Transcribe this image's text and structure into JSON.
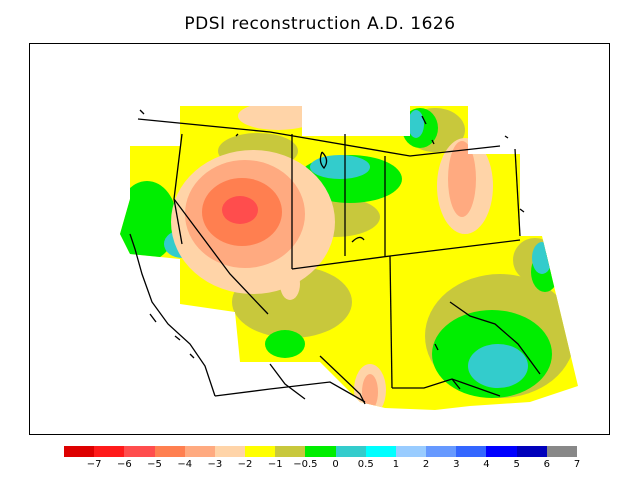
{
  "title": "PDSI reconstruction A.D. 1626",
  "legend": {
    "colors": [
      "#dd0000",
      "#ff1a1a",
      "#ff4d4d",
      "#ff7f50",
      "#ffaa80",
      "#ffd4a8",
      "#ffff00",
      "#c8c83c",
      "#00ee00",
      "#33cccc",
      "#00ffff",
      "#99ccff",
      "#6699ff",
      "#3366ff",
      "#0000ff",
      "#0000bb",
      "#888888"
    ],
    "labels": [
      "−7",
      "−6",
      "−5",
      "−4",
      "−3",
      "−2",
      "−1",
      "−0.5",
      "0",
      "0.5",
      "1",
      "2",
      "3",
      "4",
      "5",
      "6",
      "7"
    ]
  },
  "map": {
    "region": "western-united-states",
    "variable": "PDSI",
    "year": "A.D. 1626"
  }
}
